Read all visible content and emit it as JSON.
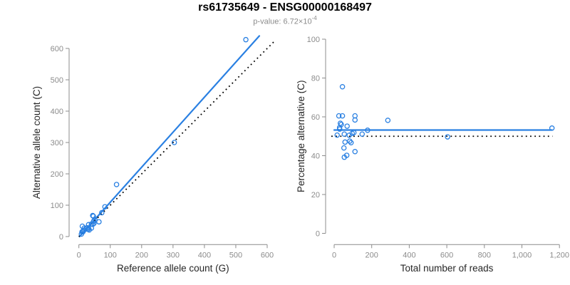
{
  "title": "rs61735649 - ENSG00000168497",
  "subtitle": {
    "label": "p-value: ",
    "value": "6.72×10",
    "exponent": "-4"
  },
  "colors": {
    "accent_blue": "#2a80e2",
    "identity_line": "#000000",
    "axis": "#8c8c8c",
    "tick_label": "#8c8c8c",
    "axis_title": "#262626",
    "title": "#000000",
    "subtitle": "#8c8c8c"
  },
  "chart_data": [
    {
      "type": "scatter",
      "name": "allele-counts-panel",
      "xlabel": "Reference allele count (G)",
      "ylabel": "Alternative allele count (C)",
      "xlim": [
        0,
        620
      ],
      "ylim": [
        0,
        640
      ],
      "xticks": [
        0,
        100,
        200,
        300,
        400,
        500,
        600
      ],
      "yticks": [
        0,
        100,
        200,
        300,
        400,
        500,
        600
      ],
      "grid": false,
      "legend": "none",
      "point_color": "#2a80e2",
      "points": [
        [
          11,
          33
        ],
        [
          10,
          15
        ],
        [
          17,
          27
        ],
        [
          44,
          67
        ],
        [
          46,
          65
        ],
        [
          120,
          166
        ],
        [
          14,
          19
        ],
        [
          17,
          21
        ],
        [
          13,
          16
        ],
        [
          13,
          15
        ],
        [
          31,
          38
        ],
        [
          8,
          8
        ],
        [
          26,
          28
        ],
        [
          40,
          40
        ],
        [
          47,
          49
        ],
        [
          51,
          54
        ],
        [
          73,
          76
        ],
        [
          83,
          95
        ],
        [
          31,
          27
        ],
        [
          44,
          39
        ],
        [
          48,
          42
        ],
        [
          29,
          23
        ],
        [
          40,
          27
        ],
        [
          33,
          21
        ],
        [
          64,
          47
        ],
        [
          304,
          300
        ],
        [
          532,
          628
        ]
      ],
      "lines": [
        {
          "name": "fit-line",
          "style": "solid",
          "color": "#2a80e2",
          "width": 2.2,
          "from": [
            2,
            0
          ],
          "to": [
            575,
            640
          ]
        },
        {
          "name": "identity-line",
          "style": "dotted",
          "color": "#000000",
          "width": 1.8,
          "from": [
            0,
            0
          ],
          "to": [
            625,
            625
          ]
        }
      ]
    },
    {
      "type": "scatter",
      "name": "percentage-alternative-panel",
      "xlabel": "Total number of reads",
      "ylabel": "Percentage alternative (C)",
      "xlim": [
        0,
        1215
      ],
      "ylim": [
        0,
        100
      ],
      "xticks": [
        0,
        200,
        400,
        600,
        800,
        1000,
        1200
      ],
      "xtick_labels": [
        "0",
        "200",
        "400",
        "600",
        "800",
        "1,000",
        "1,200"
      ],
      "yticks": [
        0,
        20,
        40,
        60,
        80,
        100
      ],
      "grid": false,
      "legend": "none",
      "point_color": "#2a80e2",
      "points": [
        [
          44,
          75.5
        ],
        [
          25,
          60.5
        ],
        [
          44,
          60.5
        ],
        [
          111,
          60.5
        ],
        [
          111,
          58.4
        ],
        [
          286,
          58.2
        ],
        [
          33,
          56.7
        ],
        [
          38,
          56.1
        ],
        [
          29,
          54.5
        ],
        [
          29,
          53.7
        ],
        [
          69,
          55.2
        ],
        [
          16,
          50.6
        ],
        [
          54,
          51.1
        ],
        [
          80,
          50.5
        ],
        [
          96,
          51.5
        ],
        [
          105,
          51.9
        ],
        [
          149,
          51.1
        ],
        [
          178,
          53.1
        ],
        [
          58,
          47.0
        ],
        [
          83,
          47.5
        ],
        [
          90,
          46.7
        ],
        [
          52,
          44.0
        ],
        [
          67,
          40.2
        ],
        [
          54,
          39.2
        ],
        [
          111,
          42.1
        ],
        [
          604,
          49.7
        ],
        [
          1160,
          54.2
        ]
      ],
      "lines": [
        {
          "name": "fit-line",
          "style": "solid",
          "color": "#2a80e2",
          "width": 2.2,
          "from": [
            0,
            53.2
          ],
          "to": [
            1160,
            53.2
          ]
        },
        {
          "name": "fifty-percent-line",
          "style": "dotted",
          "color": "#000000",
          "width": 1.8,
          "from": [
            -15,
            50
          ],
          "to": [
            1163,
            50
          ]
        }
      ]
    }
  ]
}
